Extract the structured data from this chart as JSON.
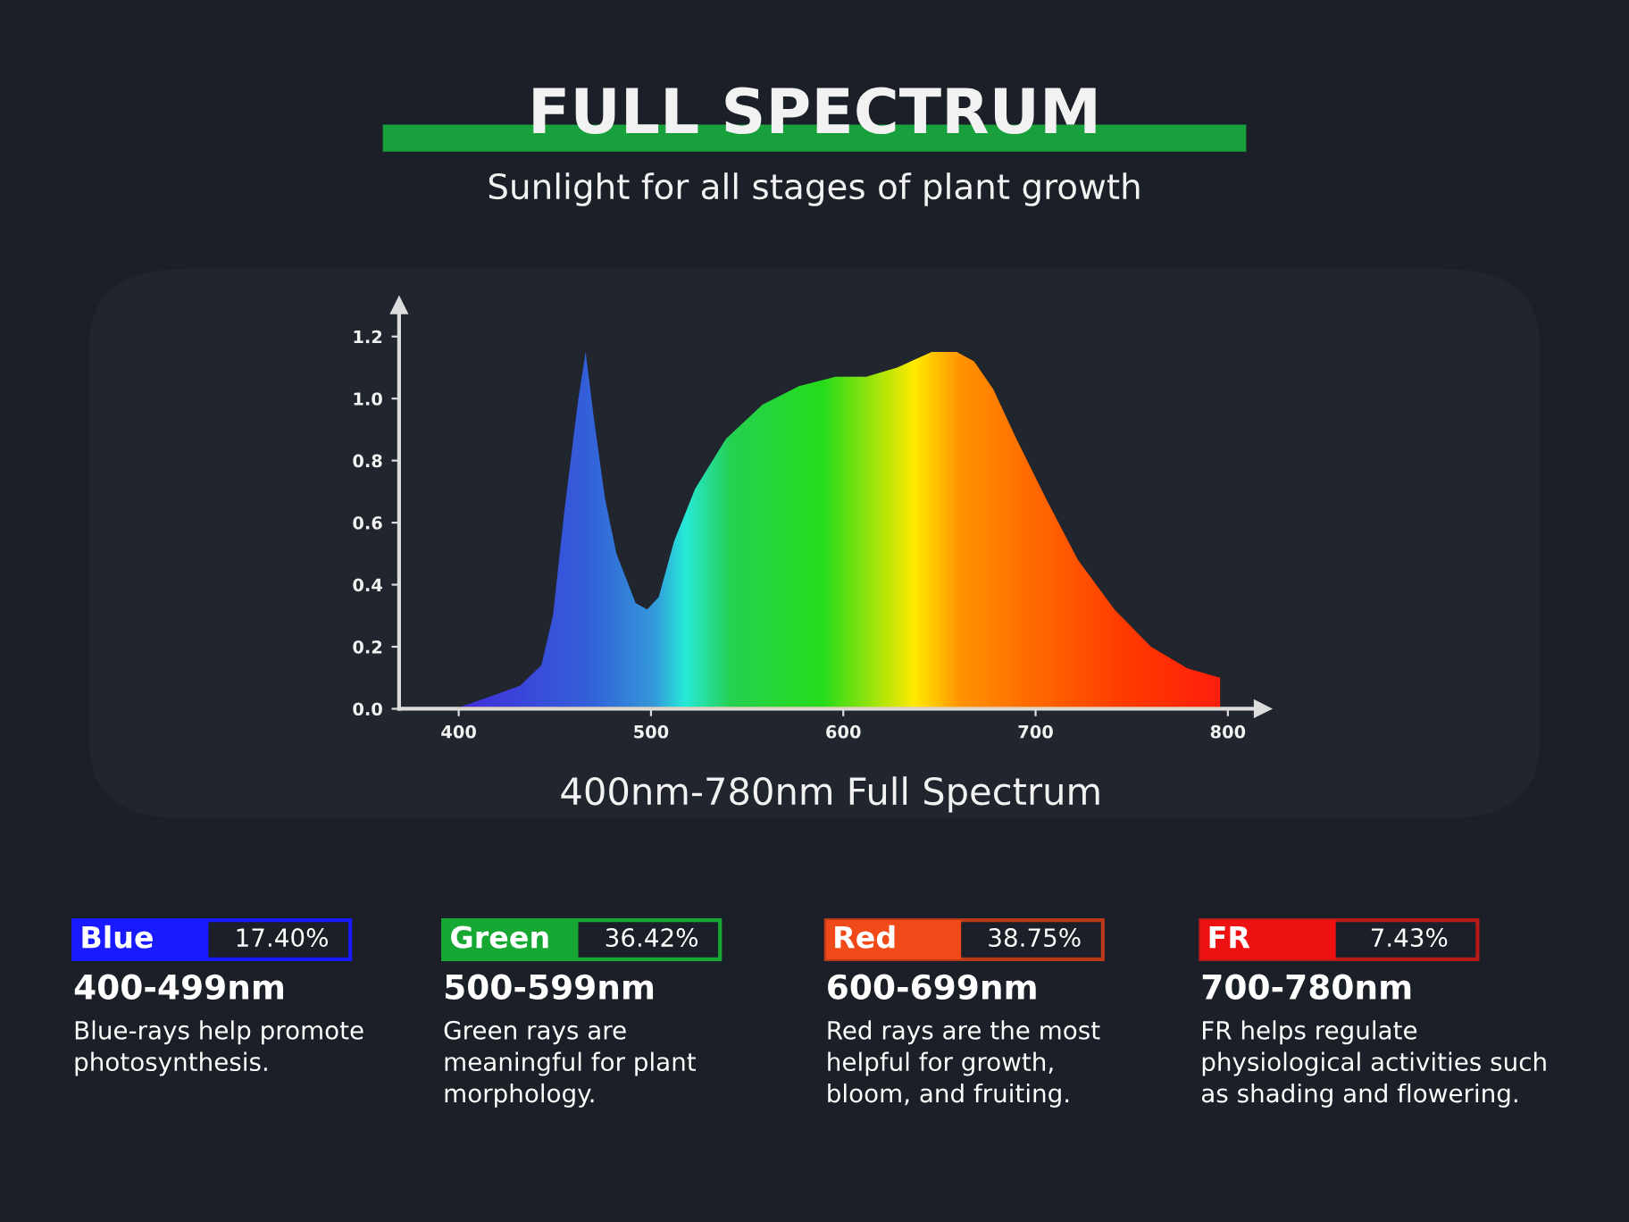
{
  "chart_data": {
    "type": "area",
    "title": "FULL SPECTRUM",
    "subtitle": "Sunlight for all stages of plant growth",
    "xlabel": "400nm-780nm Full Spectrum",
    "x": [
      398,
      419,
      432,
      443,
      449,
      455,
      462,
      466,
      470,
      476,
      482,
      492,
      498,
      504,
      512,
      523,
      539,
      558,
      577,
      596,
      612,
      628,
      646,
      659,
      668,
      678,
      690,
      706,
      722,
      741,
      760,
      779,
      796
    ],
    "values": [
      0.0,
      0.045,
      0.075,
      0.14,
      0.3,
      0.64,
      0.99,
      1.15,
      0.95,
      0.68,
      0.5,
      0.34,
      0.32,
      0.36,
      0.54,
      0.71,
      0.87,
      0.98,
      1.04,
      1.07,
      1.07,
      1.1,
      1.15,
      1.15,
      1.12,
      1.03,
      0.87,
      0.67,
      0.48,
      0.32,
      0.2,
      0.13,
      0.1
    ],
    "xlim": [
      369,
      818
    ],
    "ylim": [
      0,
      1.3
    ],
    "xticks": [
      400,
      500,
      600,
      700,
      800
    ],
    "yticks": [
      {
        "value": 0,
        "label": "0.0"
      },
      {
        "value": 0.2,
        "label": "0.2"
      },
      {
        "value": 0.4,
        "label": "0.4"
      },
      {
        "value": 0.6,
        "label": "0.6"
      },
      {
        "value": 0.8,
        "label": "0.8"
      },
      {
        "value": 1.0,
        "label": "1.0"
      },
      {
        "value": 1.2,
        "label": "1.2"
      }
    ],
    "annotations": [
      "Blue",
      "17.40%",
      "400-499nm",
      "Blue-rays help promote\nphotosynthesis.",
      "Green",
      "36.42%",
      "500-599nm",
      "Green rays are\nmeaningful for plant\nmorphology.",
      "Red",
      "38.75%",
      "600-699nm",
      "Red rays are the most\nhelpful for growth,\nbloom, and fruiting.",
      "FR",
      "7.43%",
      "700-780nm",
      "FR helps regulate\nphysiological activities such\nas shading and flowering."
    ]
  }
}
